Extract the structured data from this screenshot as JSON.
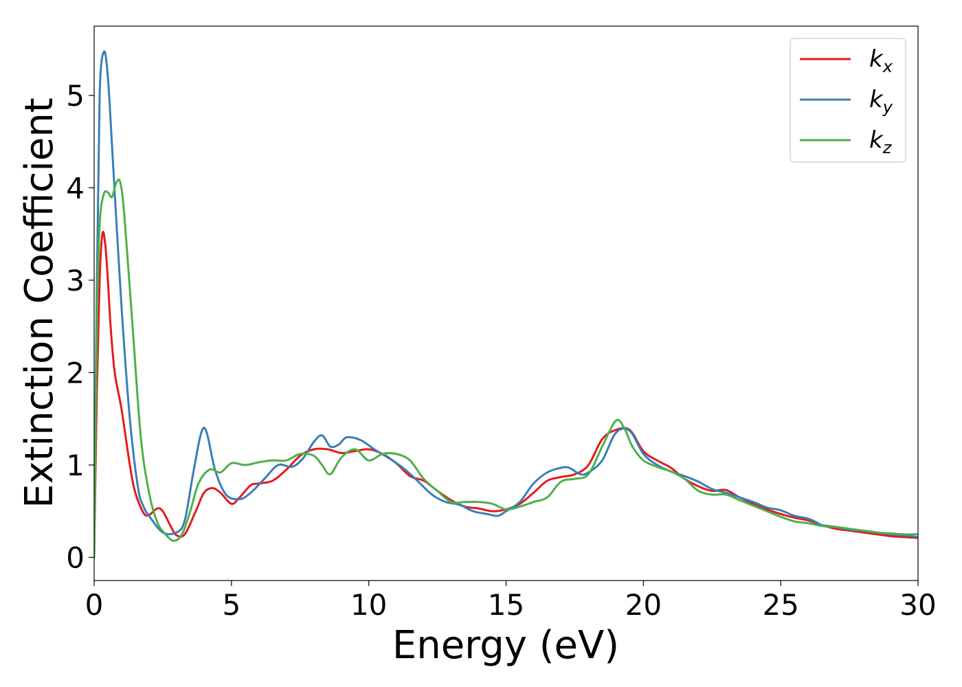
{
  "chart_data": {
    "type": "line",
    "title": "",
    "xlabel": "Energy (eV)",
    "ylabel": "Extinction Coefficient",
    "xlim": [
      0,
      30
    ],
    "ylim": [
      -0.25,
      5.75
    ],
    "xticks": [
      0,
      5,
      10,
      15,
      20,
      25,
      30
    ],
    "yticks": [
      0,
      1,
      2,
      3,
      4,
      5
    ],
    "grid": false,
    "legend_position": "top-right",
    "series": [
      {
        "name": "k",
        "subscript": "x",
        "color": "#e41a1c",
        "points": [
          [
            0,
            0
          ],
          [
            0.1,
            1.8
          ],
          [
            0.2,
            3.0
          ],
          [
            0.3,
            3.5
          ],
          [
            0.4,
            3.4
          ],
          [
            0.5,
            3.0
          ],
          [
            0.6,
            2.5
          ],
          [
            0.75,
            2.0
          ],
          [
            1.0,
            1.6
          ],
          [
            1.3,
            1.0
          ],
          [
            1.5,
            0.7
          ],
          [
            1.8,
            0.48
          ],
          [
            2.0,
            0.46
          ],
          [
            2.3,
            0.53
          ],
          [
            2.5,
            0.5
          ],
          [
            2.8,
            0.33
          ],
          [
            3.0,
            0.24
          ],
          [
            3.3,
            0.25
          ],
          [
            3.7,
            0.5
          ],
          [
            4.0,
            0.7
          ],
          [
            4.3,
            0.75
          ],
          [
            4.6,
            0.7
          ],
          [
            5.0,
            0.58
          ],
          [
            5.3,
            0.65
          ],
          [
            5.7,
            0.78
          ],
          [
            6.0,
            0.8
          ],
          [
            6.5,
            0.83
          ],
          [
            7.0,
            0.95
          ],
          [
            7.5,
            1.1
          ],
          [
            8.0,
            1.17
          ],
          [
            8.5,
            1.17
          ],
          [
            9.0,
            1.13
          ],
          [
            9.5,
            1.15
          ],
          [
            10.0,
            1.17
          ],
          [
            10.5,
            1.12
          ],
          [
            11.0,
            1.02
          ],
          [
            11.5,
            0.88
          ],
          [
            12.0,
            0.83
          ],
          [
            12.5,
            0.72
          ],
          [
            13.0,
            0.62
          ],
          [
            13.5,
            0.55
          ],
          [
            14.0,
            0.53
          ],
          [
            14.5,
            0.5
          ],
          [
            15.0,
            0.52
          ],
          [
            15.5,
            0.58
          ],
          [
            16.0,
            0.7
          ],
          [
            16.5,
            0.83
          ],
          [
            17.0,
            0.87
          ],
          [
            17.5,
            0.9
          ],
          [
            18.0,
            1.0
          ],
          [
            18.5,
            1.28
          ],
          [
            19.0,
            1.38
          ],
          [
            19.5,
            1.38
          ],
          [
            20.0,
            1.15
          ],
          [
            20.5,
            1.05
          ],
          [
            21.0,
            0.97
          ],
          [
            21.5,
            0.85
          ],
          [
            22.0,
            0.77
          ],
          [
            22.5,
            0.72
          ],
          [
            23.0,
            0.73
          ],
          [
            23.5,
            0.65
          ],
          [
            24.0,
            0.58
          ],
          [
            24.5,
            0.52
          ],
          [
            25.0,
            0.47
          ],
          [
            25.5,
            0.43
          ],
          [
            26.0,
            0.4
          ],
          [
            26.5,
            0.35
          ],
          [
            27.0,
            0.31
          ],
          [
            27.5,
            0.29
          ],
          [
            28.0,
            0.27
          ],
          [
            28.5,
            0.25
          ],
          [
            29.0,
            0.23
          ],
          [
            29.5,
            0.22
          ],
          [
            30.0,
            0.21
          ]
        ]
      },
      {
        "name": "k",
        "subscript": "y",
        "color": "#377eb8",
        "points": [
          [
            0,
            0
          ],
          [
            0.1,
            3.0
          ],
          [
            0.2,
            5.0
          ],
          [
            0.35,
            5.47
          ],
          [
            0.5,
            5.2
          ],
          [
            0.7,
            4.2
          ],
          [
            1.0,
            2.7
          ],
          [
            1.3,
            1.5
          ],
          [
            1.6,
            0.75
          ],
          [
            1.8,
            0.55
          ],
          [
            2.0,
            0.45
          ],
          [
            2.5,
            0.27
          ],
          [
            3.0,
            0.27
          ],
          [
            3.3,
            0.4
          ],
          [
            3.6,
            0.9
          ],
          [
            3.9,
            1.35
          ],
          [
            4.1,
            1.35
          ],
          [
            4.4,
            0.95
          ],
          [
            4.8,
            0.68
          ],
          [
            5.3,
            0.63
          ],
          [
            5.7,
            0.7
          ],
          [
            6.2,
            0.85
          ],
          [
            6.7,
            1.0
          ],
          [
            7.2,
            0.98
          ],
          [
            7.6,
            1.07
          ],
          [
            8.0,
            1.25
          ],
          [
            8.3,
            1.32
          ],
          [
            8.6,
            1.2
          ],
          [
            8.9,
            1.22
          ],
          [
            9.2,
            1.3
          ],
          [
            9.7,
            1.27
          ],
          [
            10.2,
            1.17
          ],
          [
            10.7,
            1.08
          ],
          [
            11.2,
            0.98
          ],
          [
            11.7,
            0.85
          ],
          [
            12.3,
            0.68
          ],
          [
            12.8,
            0.6
          ],
          [
            13.3,
            0.57
          ],
          [
            13.8,
            0.5
          ],
          [
            14.3,
            0.47
          ],
          [
            14.7,
            0.45
          ],
          [
            15.0,
            0.5
          ],
          [
            15.5,
            0.6
          ],
          [
            16.0,
            0.8
          ],
          [
            16.5,
            0.92
          ],
          [
            17.0,
            0.97
          ],
          [
            17.3,
            0.97
          ],
          [
            17.7,
            0.9
          ],
          [
            18.0,
            0.92
          ],
          [
            18.5,
            1.05
          ],
          [
            19.0,
            1.35
          ],
          [
            19.5,
            1.37
          ],
          [
            20.0,
            1.12
          ],
          [
            20.5,
            1.0
          ],
          [
            21.0,
            0.93
          ],
          [
            21.5,
            0.88
          ],
          [
            22.0,
            0.82
          ],
          [
            22.5,
            0.74
          ],
          [
            23.0,
            0.7
          ],
          [
            23.5,
            0.65
          ],
          [
            24.0,
            0.6
          ],
          [
            24.5,
            0.54
          ],
          [
            25.0,
            0.51
          ],
          [
            25.5,
            0.45
          ],
          [
            26.0,
            0.42
          ],
          [
            26.3,
            0.38
          ],
          [
            26.5,
            0.35
          ],
          [
            27.0,
            0.33
          ],
          [
            27.5,
            0.3
          ],
          [
            28.0,
            0.29
          ],
          [
            28.5,
            0.27
          ],
          [
            29.0,
            0.25
          ],
          [
            29.5,
            0.24
          ],
          [
            30.0,
            0.22
          ]
        ]
      },
      {
        "name": "k",
        "subscript": "z",
        "color": "#4daf4a",
        "points": [
          [
            0,
            0
          ],
          [
            0.1,
            2.5
          ],
          [
            0.2,
            3.6
          ],
          [
            0.35,
            3.93
          ],
          [
            0.5,
            3.95
          ],
          [
            0.65,
            3.9
          ],
          [
            0.8,
            4.05
          ],
          [
            0.95,
            4.06
          ],
          [
            1.1,
            3.7
          ],
          [
            1.4,
            2.5
          ],
          [
            1.7,
            1.3
          ],
          [
            2.0,
            0.7
          ],
          [
            2.3,
            0.38
          ],
          [
            2.6,
            0.25
          ],
          [
            2.9,
            0.18
          ],
          [
            3.2,
            0.25
          ],
          [
            3.5,
            0.5
          ],
          [
            3.8,
            0.8
          ],
          [
            4.2,
            0.95
          ],
          [
            4.6,
            0.92
          ],
          [
            5.0,
            1.02
          ],
          [
            5.5,
            1.0
          ],
          [
            6.0,
            1.03
          ],
          [
            6.5,
            1.05
          ],
          [
            7.0,
            1.05
          ],
          [
            7.5,
            1.12
          ],
          [
            8.0,
            1.1
          ],
          [
            8.3,
            1.0
          ],
          [
            8.6,
            0.9
          ],
          [
            9.0,
            1.08
          ],
          [
            9.5,
            1.17
          ],
          [
            10.0,
            1.05
          ],
          [
            10.5,
            1.12
          ],
          [
            11.0,
            1.12
          ],
          [
            11.5,
            1.05
          ],
          [
            12.0,
            0.85
          ],
          [
            12.5,
            0.72
          ],
          [
            13.0,
            0.6
          ],
          [
            13.5,
            0.6
          ],
          [
            14.0,
            0.6
          ],
          [
            14.5,
            0.58
          ],
          [
            15.0,
            0.52
          ],
          [
            15.5,
            0.55
          ],
          [
            16.0,
            0.6
          ],
          [
            16.5,
            0.65
          ],
          [
            17.0,
            0.82
          ],
          [
            17.5,
            0.85
          ],
          [
            18.0,
            0.9
          ],
          [
            18.5,
            1.2
          ],
          [
            19.0,
            1.48
          ],
          [
            19.3,
            1.4
          ],
          [
            19.6,
            1.2
          ],
          [
            20.0,
            1.05
          ],
          [
            20.5,
            0.98
          ],
          [
            21.0,
            0.93
          ],
          [
            21.5,
            0.85
          ],
          [
            22.0,
            0.72
          ],
          [
            22.5,
            0.68
          ],
          [
            23.0,
            0.68
          ],
          [
            23.5,
            0.62
          ],
          [
            24.0,
            0.56
          ],
          [
            24.5,
            0.5
          ],
          [
            25.0,
            0.44
          ],
          [
            25.5,
            0.39
          ],
          [
            26.0,
            0.37
          ],
          [
            26.5,
            0.34
          ],
          [
            27.0,
            0.33
          ],
          [
            27.5,
            0.31
          ],
          [
            28.0,
            0.29
          ],
          [
            28.5,
            0.27
          ],
          [
            29.0,
            0.26
          ],
          [
            29.5,
            0.25
          ],
          [
            30.0,
            0.25
          ]
        ]
      }
    ]
  }
}
